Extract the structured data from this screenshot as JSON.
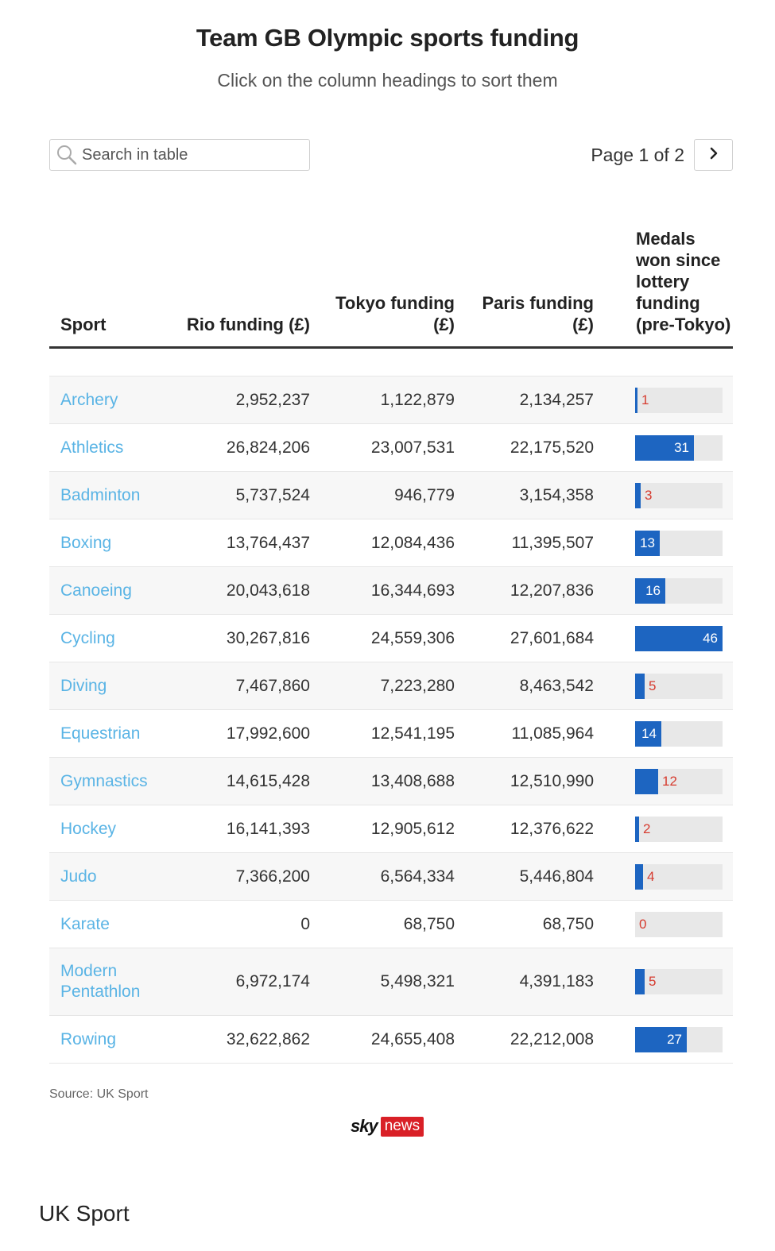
{
  "header": {
    "title": "Team GB Olympic sports funding",
    "subtitle": "Click on the column headings to sort them"
  },
  "search": {
    "placeholder": "Search in table"
  },
  "pagination": {
    "page_text": "Page 1 of 2",
    "next_icon": "chevron-right-icon"
  },
  "table": {
    "columns": [
      "Sport",
      "Rio funding (£)",
      "Tokyo funding (£)",
      "Paris funding (£)",
      "Medals won since lottery funding (pre-Tokyo)"
    ],
    "rows": [
      {
        "sport": "Archery",
        "rio": "2,952,237",
        "tokyo": "1,122,879",
        "paris": "2,134,257",
        "medals": 1
      },
      {
        "sport": "Athletics",
        "rio": "26,824,206",
        "tokyo": "23,007,531",
        "paris": "22,175,520",
        "medals": 31
      },
      {
        "sport": "Badminton",
        "rio": "5,737,524",
        "tokyo": "946,779",
        "paris": "3,154,358",
        "medals": 3
      },
      {
        "sport": "Boxing",
        "rio": "13,764,437",
        "tokyo": "12,084,436",
        "paris": "11,395,507",
        "medals": 13
      },
      {
        "sport": "Canoeing",
        "rio": "20,043,618",
        "tokyo": "16,344,693",
        "paris": "12,207,836",
        "medals": 16
      },
      {
        "sport": "Cycling",
        "rio": "30,267,816",
        "tokyo": "24,559,306",
        "paris": "27,601,684",
        "medals": 46
      },
      {
        "sport": "Diving",
        "rio": "7,467,860",
        "tokyo": "7,223,280",
        "paris": "8,463,542",
        "medals": 5
      },
      {
        "sport": "Equestrian",
        "rio": "17,992,600",
        "tokyo": "12,541,195",
        "paris": "11,085,964",
        "medals": 14
      },
      {
        "sport": "Gymnastics",
        "rio": "14,615,428",
        "tokyo": "13,408,688",
        "paris": "12,510,990",
        "medals": 12
      },
      {
        "sport": "Hockey",
        "rio": "16,141,393",
        "tokyo": "12,905,612",
        "paris": "12,376,622",
        "medals": 2
      },
      {
        "sport": "Judo",
        "rio": "7,366,200",
        "tokyo": "6,564,334",
        "paris": "5,446,804",
        "medals": 4
      },
      {
        "sport": "Karate",
        "rio": "0",
        "tokyo": "68,750",
        "paris": "68,750",
        "medals": 0
      },
      {
        "sport": "Modern Pentathlon",
        "rio": "6,972,174",
        "tokyo": "5,498,321",
        "paris": "4,391,183",
        "medals": 5
      },
      {
        "sport": "Rowing",
        "rio": "32,622,862",
        "tokyo": "24,655,408",
        "paris": "22,212,008",
        "medals": 27
      }
    ],
    "medals_max": 46,
    "colors": {
      "bar": "#1d65c1",
      "bar_track": "#e8e8e8",
      "sport_link": "#5ab4e5",
      "outside_label": "#d63b2f"
    }
  },
  "footer": {
    "source": "Source: UK Sport",
    "logo_sky": "sky",
    "logo_news": "news",
    "caption": "UK Sport"
  }
}
